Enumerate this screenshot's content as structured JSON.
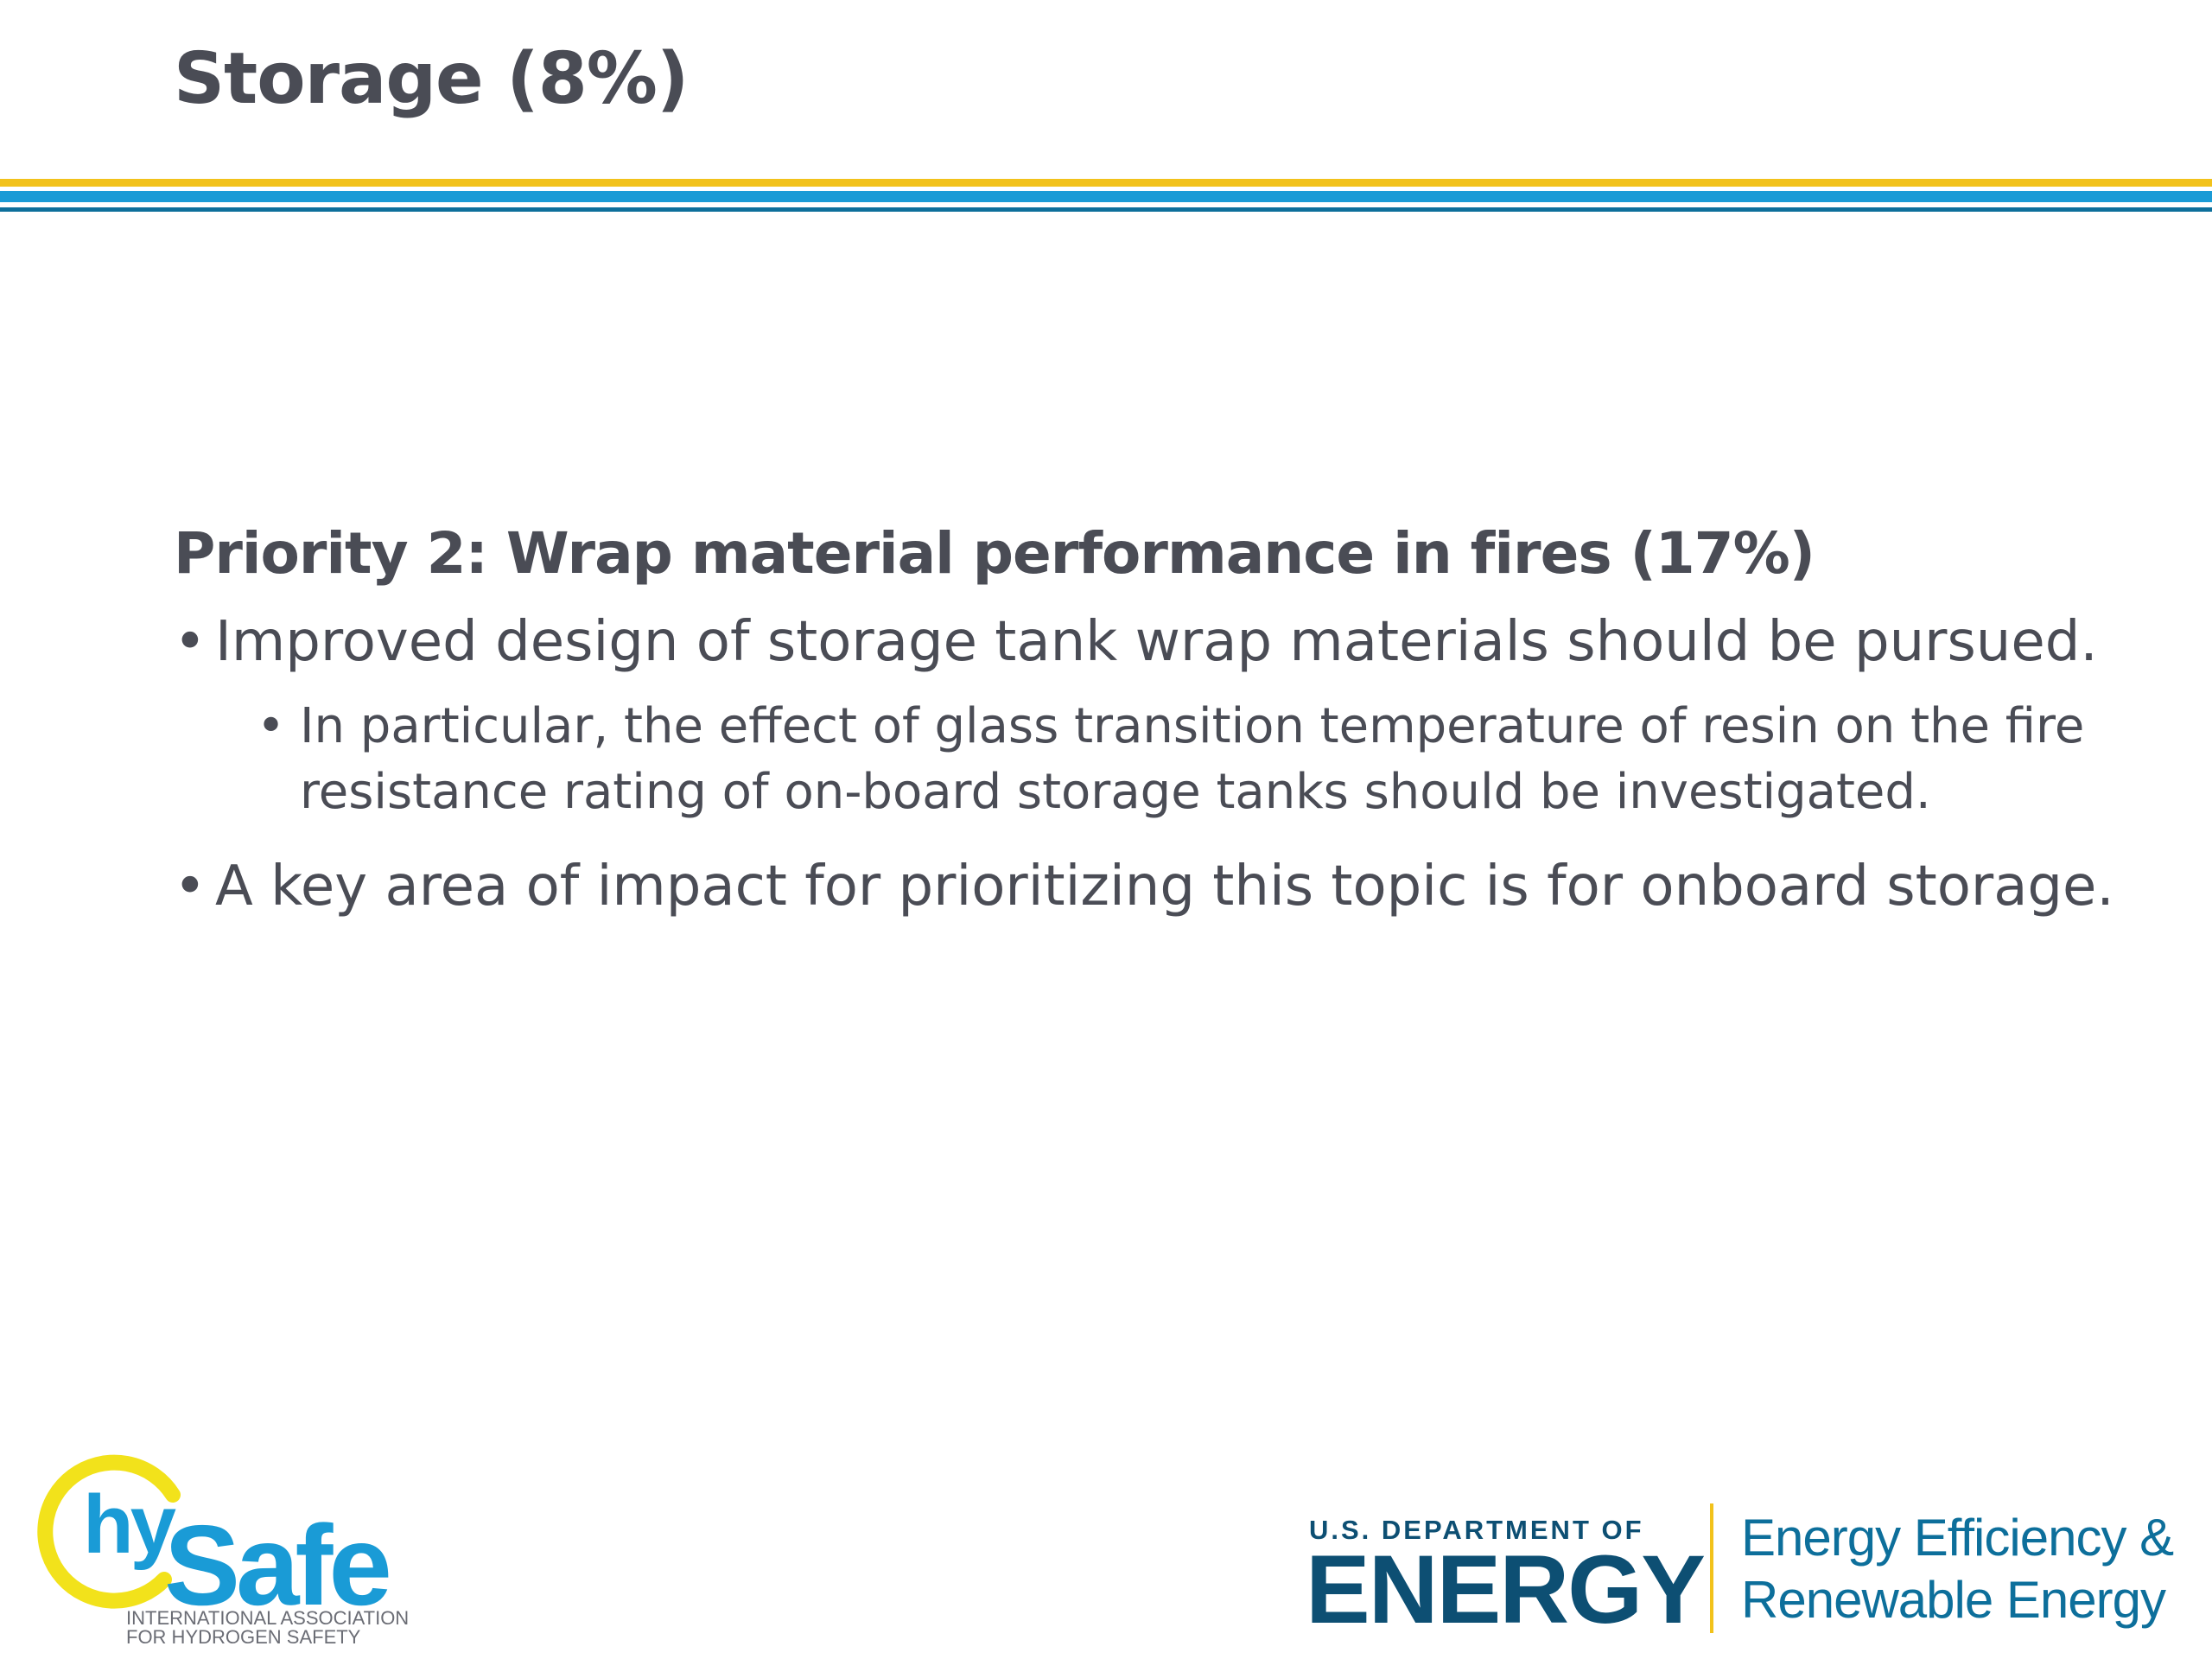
{
  "slide": {
    "title": "Storage (8%)"
  },
  "content": {
    "heading": "Priority 2: Wrap material performance in fires (17%)",
    "bullet_glyph": "•",
    "bullets": [
      "Improved design of storage tank wrap materials should be pursued.",
      "In particular, the effect of glass transition temperature of resin on the fire resistance rating of on-board storage tanks should be investigated.",
      "A key area of impact for prioritizing this topic is for onboard storage."
    ]
  },
  "logos": {
    "hysafe": {
      "prefix": "hy",
      "name": "Safe",
      "line1": "INTERNATIONAL ASSOCIATION",
      "line2": "FOR HYDROGEN SAFETY"
    },
    "doe": {
      "dept": "U.S. DEPARTMENT OF",
      "energy": "ENERGY",
      "eere_line1": "Energy Efficiency &",
      "eere_line2": "Renewable Energy"
    }
  },
  "colors": {
    "text": "#4a4c55",
    "rule_yellow": "#f2c21b",
    "rule_blue": "#1a9bd6",
    "rule_teal": "#0d6f9b",
    "doe_navy": "#0d4f73",
    "hysafe_blue": "#1a9bd6",
    "hysafe_yellow": "#f2e21b"
  }
}
